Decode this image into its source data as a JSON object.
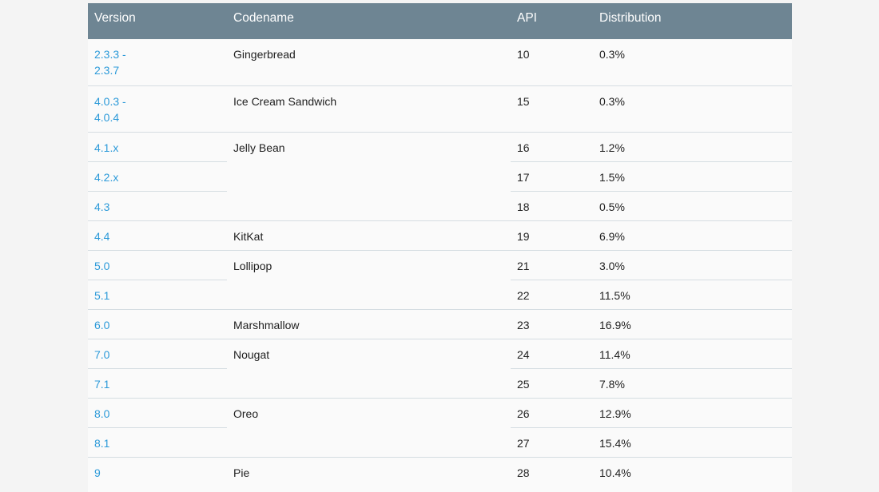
{
  "table": {
    "headers": {
      "version": "Version",
      "codename": "Codename",
      "api": "API",
      "distribution": "Distribution"
    },
    "rows": [
      {
        "version": "2.3.3 -\n2.3.7",
        "codename": "Gingerbread",
        "api": "10",
        "distribution": "0.3%"
      },
      {
        "version": "4.0.3 -\n4.0.4",
        "codename": "Ice Cream Sandwich",
        "api": "15",
        "distribution": "0.3%"
      },
      {
        "version": "4.1.x",
        "codename": "Jelly Bean",
        "api": "16",
        "distribution": "1.2%"
      },
      {
        "version": "4.2.x",
        "codename": "",
        "api": "17",
        "distribution": "1.5%"
      },
      {
        "version": "4.3",
        "codename": "",
        "api": "18",
        "distribution": "0.5%"
      },
      {
        "version": "4.4",
        "codename": "KitKat",
        "api": "19",
        "distribution": "6.9%"
      },
      {
        "version": "5.0",
        "codename": "Lollipop",
        "api": "21",
        "distribution": "3.0%"
      },
      {
        "version": "5.1",
        "codename": "",
        "api": "22",
        "distribution": "11.5%"
      },
      {
        "version": "6.0",
        "codename": "Marshmallow",
        "api": "23",
        "distribution": "16.9%"
      },
      {
        "version": "7.0",
        "codename": "Nougat",
        "api": "24",
        "distribution": "11.4%"
      },
      {
        "version": "7.1",
        "codename": "",
        "api": "25",
        "distribution": "7.8%"
      },
      {
        "version": "8.0",
        "codename": "Oreo",
        "api": "26",
        "distribution": "12.9%"
      },
      {
        "version": "8.1",
        "codename": "",
        "api": "27",
        "distribution": "15.4%"
      },
      {
        "version": "9",
        "codename": "Pie",
        "api": "28",
        "distribution": "10.4%"
      }
    ]
  },
  "colors": {
    "header_bg": "#6e8593",
    "link": "#2c9ad9",
    "divider": "#d5dde2"
  }
}
